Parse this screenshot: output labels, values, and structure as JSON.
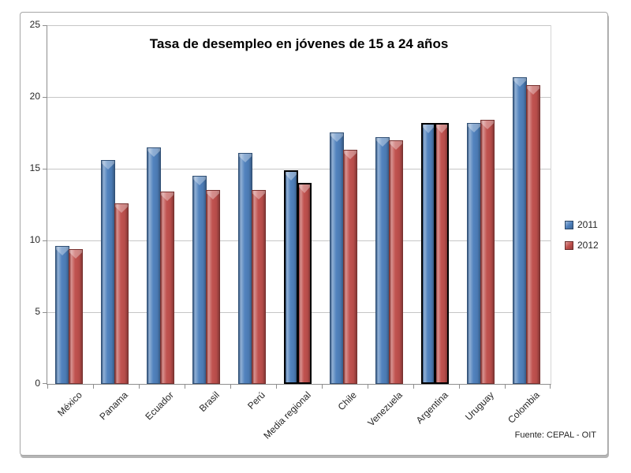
{
  "chart_data": {
    "type": "bar",
    "title": "Tasa de desempleo en jóvenes de 15 a 24 años",
    "source_note": "Fuente: CEPAL - OIT",
    "categories": [
      "México",
      "Panama",
      "Ecuador",
      "Brasil",
      "Perú",
      "Media regional",
      "Chile",
      "Venezuela",
      "Argentina",
      "Uruguay",
      "Colombia"
    ],
    "series": [
      {
        "name": "2011",
        "color": "#4F81BD",
        "values": [
          9.6,
          15.6,
          16.5,
          14.5,
          16.1,
          14.9,
          17.5,
          17.2,
          18.2,
          18.2,
          21.4
        ]
      },
      {
        "name": "2012",
        "color": "#C0504D",
        "values": [
          9.4,
          12.6,
          13.4,
          13.5,
          13.5,
          14.0,
          16.3,
          17.0,
          18.2,
          18.4,
          20.8
        ]
      }
    ],
    "highlighted_categories": [
      "Media regional",
      "Argentina"
    ],
    "highlight_outline_color": "#000000",
    "ylabel": "",
    "xlabel": "",
    "ylim": [
      0,
      25
    ],
    "yticks": [
      0,
      5,
      10,
      15,
      20,
      25
    ],
    "grid": true,
    "legend_position": "right"
  }
}
